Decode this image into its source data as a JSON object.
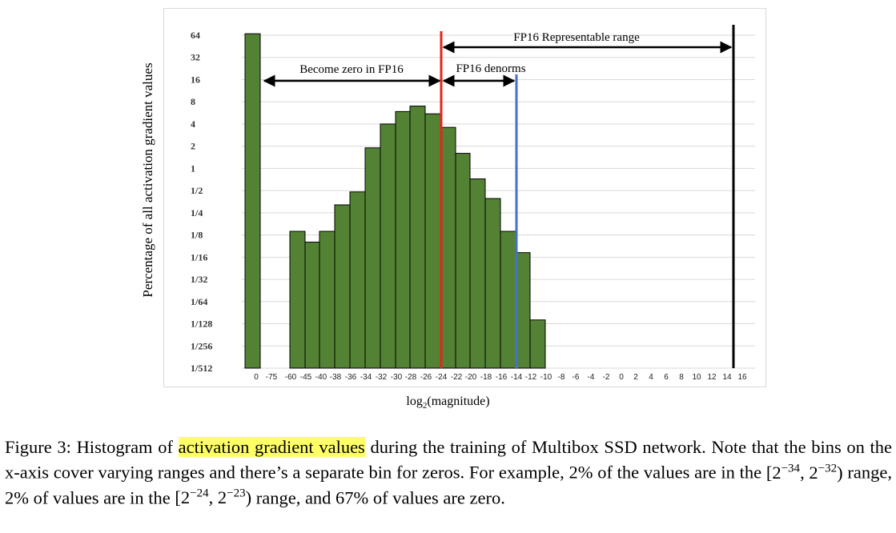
{
  "chart_data": {
    "type": "bar",
    "y_scale": "log2",
    "ylabel": "Percentage of all activation gradient values",
    "xlabel_base": "log",
    "xlabel_sub": "2",
    "xlabel_rest": "(magnitude)",
    "y_tick_labels": [
      "1/512",
      "1/256",
      "1/128",
      "1/64",
      "1/32",
      "1/16",
      "1/8",
      "1/4",
      "1/2",
      "1",
      "2",
      "4",
      "8",
      "16",
      "32",
      "64"
    ],
    "x_tick_labels": [
      "0",
      "-75",
      "-60",
      "-45",
      "-40",
      "-38",
      "-36",
      "-34",
      "-32",
      "-30",
      "-28",
      "-26",
      "-24",
      "-22",
      "-20",
      "-18",
      "-16",
      "-14",
      "-12",
      "-10",
      "-8",
      "-6",
      "-4",
      "-2",
      "0",
      "2",
      "4",
      "6",
      "8",
      "10",
      "12",
      "14",
      "16"
    ],
    "grid": true,
    "bar_color": "#548235",
    "values": [
      67,
      0,
      0.14,
      0.1,
      0.14,
      0.32,
      0.48,
      1.9,
      4.0,
      5.9,
      7.0,
      5.5,
      3.6,
      1.6,
      0.72,
      0.39,
      0.14,
      0.072,
      0.0088
    ],
    "annotations": {
      "zero_label": "Become zero in FP16",
      "denorm_label": "FP16 denorms",
      "range_label": "FP16 Representable range"
    },
    "line_colors": {
      "red": "#e8231b",
      "blue": "#4472c4",
      "black": "#000000"
    }
  },
  "caption": {
    "fig": "Figure 3:",
    "pre": "Histogram of",
    "highlight": "activation gradient values",
    "post1": "during the training of Multibox SSD network. Note that the bins on the x-axis cover varying ranges and there’s a separate bin for zeros. For example, 2% of the values are in the",
    "r1a": "[2",
    "e1": "−34",
    "r1b": ", 2",
    "e2": "−32",
    "r1c": ")",
    "mid": "range, 2% of values are in the",
    "r2a": "[2",
    "e3": "−24",
    "r2b": ", 2",
    "e4": "−23",
    "r2c": ")",
    "end": "range, and 67% of values are zero."
  }
}
